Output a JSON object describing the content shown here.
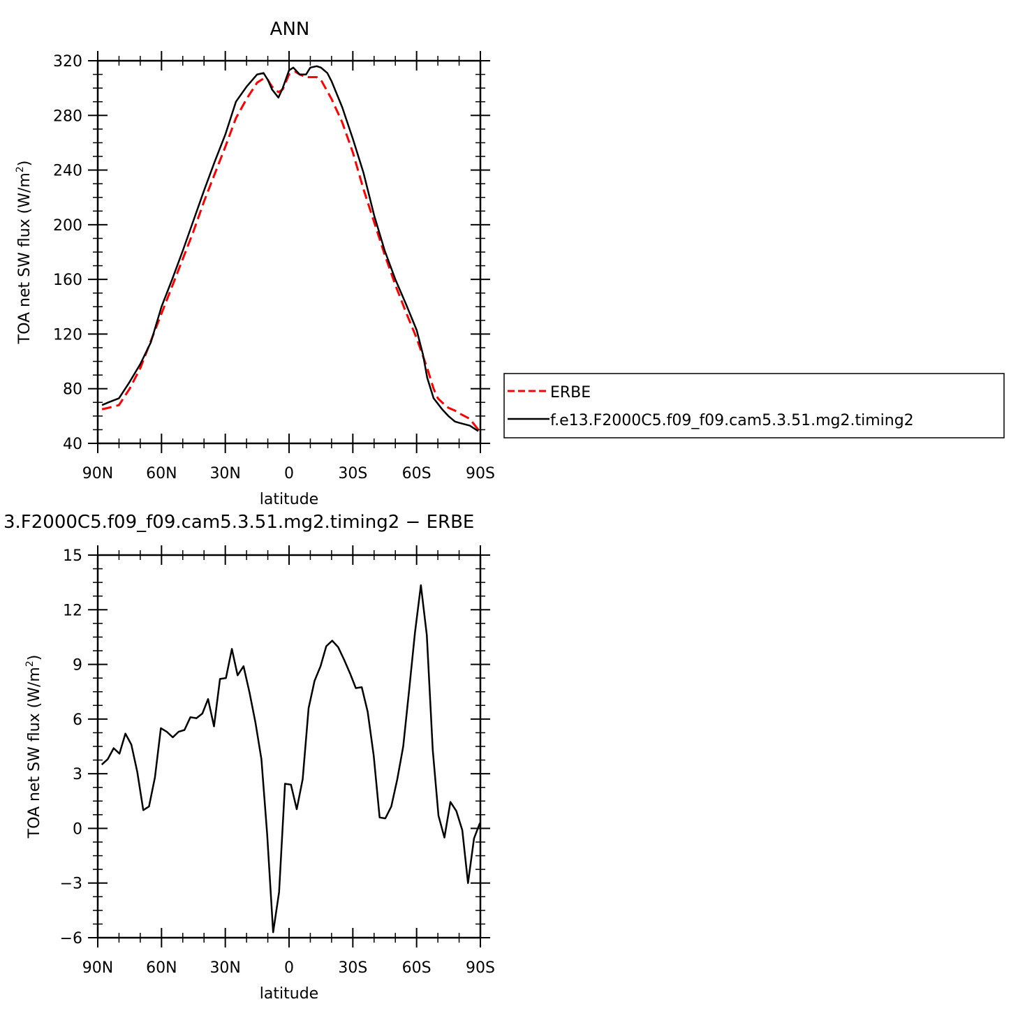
{
  "chart_data": [
    {
      "type": "line",
      "title": "ANN",
      "xlabel": "latitude",
      "ylabel": "TOA net SW flux (W/m",
      "ylabel_sup": "2",
      "ylabel_close": ")",
      "xlim": [
        90,
        -90
      ],
      "ylim": [
        40,
        320
      ],
      "x_ticks": [
        90,
        60,
        30,
        0,
        -30,
        -60,
        -90
      ],
      "x_tick_labels": [
        "90N",
        "60N",
        "30N",
        "0",
        "30S",
        "60S",
        "90S"
      ],
      "y_ticks": [
        40,
        80,
        120,
        160,
        200,
        240,
        280,
        320
      ],
      "y_tick_labels": [
        "40",
        "80",
        "120",
        "160",
        "200",
        "240",
        "280",
        "320"
      ],
      "legend_position": "right",
      "series": [
        {
          "name": "ERBE",
          "color": "#ff0000",
          "dash": "dashed",
          "x": [
            88,
            85,
            80,
            75,
            70,
            65,
            60,
            55,
            50,
            45,
            40,
            35,
            30,
            25,
            20,
            15,
            12,
            10,
            8,
            5,
            3,
            0,
            -3,
            -5,
            -8,
            -10,
            -13,
            -15,
            -20,
            -25,
            -30,
            -35,
            -40,
            -45,
            -50,
            -55,
            -60,
            -65,
            -68,
            -70,
            -72,
            -75,
            -78,
            -80,
            -85,
            -89
          ],
          "y": [
            65,
            66,
            68,
            80,
            95,
            115,
            135,
            155,
            175,
            195,
            217,
            237,
            257,
            278,
            292,
            304,
            307,
            306,
            301,
            297,
            299,
            310,
            312,
            310,
            308,
            308,
            308,
            306,
            292,
            275,
            253,
            226,
            202,
            178,
            156,
            136,
            117,
            95,
            80,
            73,
            70,
            66,
            64,
            62,
            58,
            50
          ]
        },
        {
          "name": "f.e13.F2000C5.f09_f09.cam5.3.51.mg2.timing2",
          "color": "#000000",
          "dash": "solid",
          "x": [
            88,
            85,
            80,
            75,
            70,
            65,
            60,
            55,
            50,
            45,
            40,
            35,
            30,
            25,
            20,
            15,
            12,
            10,
            8,
            5,
            3,
            0,
            -2,
            -5,
            -8,
            -10,
            -13,
            -15,
            -18,
            -20,
            -25,
            -30,
            -35,
            -40,
            -45,
            -50,
            -55,
            -60,
            -63,
            -65,
            -68,
            -70,
            -72,
            -75,
            -78,
            -80,
            -85,
            -89
          ],
          "y": [
            68,
            70,
            73,
            85,
            98,
            114,
            140,
            160,
            181,
            203,
            225,
            246,
            266,
            290,
            301,
            310,
            311,
            306,
            299,
            293,
            300,
            313,
            315,
            310,
            310,
            315,
            316,
            315,
            311,
            305,
            286,
            263,
            238,
            207,
            181,
            160,
            142,
            123,
            105,
            88,
            73,
            69,
            65,
            60,
            56,
            55,
            53,
            49
          ]
        }
      ]
    },
    {
      "type": "line",
      "title": "3.F2000C5.f09_f09.cam5.3.51.mg2.timing2 − ERBE",
      "xlabel": "latitude",
      "ylabel": "TOA net SW flux (W/m",
      "ylabel_sup": "2",
      "ylabel_close": ")",
      "xlim": [
        90,
        -90
      ],
      "ylim": [
        -6,
        15
      ],
      "x_ticks": [
        90,
        60,
        30,
        0,
        -30,
        -60,
        -90
      ],
      "x_tick_labels": [
        "90N",
        "60N",
        "30N",
        "0",
        "30S",
        "60S",
        "90S"
      ],
      "y_ticks": [
        -6,
        -3,
        0,
        3,
        6,
        9,
        12,
        15
      ],
      "y_tick_labels": [
        "−6",
        "−3",
        "0",
        "3",
        "6",
        "9",
        "12",
        "15"
      ],
      "series": [
        {
          "color": "#000000",
          "dash": "solid",
          "x": [
            88.1,
            85.3,
            82.5,
            79.8,
            77.0,
            74.2,
            71.4,
            68.6,
            65.9,
            63.1,
            60.3,
            57.5,
            54.7,
            52.0,
            49.2,
            46.4,
            43.6,
            40.8,
            38.1,
            35.3,
            32.5,
            29.7,
            26.9,
            24.2,
            21.4,
            18.6,
            15.8,
            13.0,
            10.3,
            7.5,
            4.7,
            1.9,
            -0.9,
            -3.6,
            -6.4,
            -9.2,
            -12.0,
            -14.8,
            -17.5,
            -20.3,
            -23.1,
            -25.9,
            -28.7,
            -31.4,
            -34.2,
            -37.0,
            -39.8,
            -42.6,
            -45.3,
            -48.1,
            -50.9,
            -53.7,
            -56.5,
            -59.2,
            -62.0,
            -64.8,
            -67.6,
            -70.3,
            -73.1,
            -75.9,
            -78.7,
            -81.5,
            -84.2,
            -87.0,
            -89.8
          ],
          "y": [
            3.5,
            3.8,
            4.4,
            4.1,
            5.2,
            4.6,
            3.1,
            1.0,
            1.2,
            2.8,
            5.5,
            5.3,
            5.0,
            5.3,
            5.4,
            6.1,
            6.05,
            6.3,
            7.1,
            5.6,
            8.2,
            8.25,
            9.85,
            8.4,
            8.9,
            7.45,
            5.8,
            3.8,
            -0.3,
            -5.7,
            -3.5,
            2.45,
            2.4,
            1.05,
            2.7,
            6.6,
            8.1,
            8.9,
            10.0,
            10.3,
            9.95,
            9.25,
            8.5,
            7.7,
            7.75,
            6.4,
            4.0,
            0.6,
            0.55,
            1.2,
            2.7,
            4.5,
            7.6,
            10.7,
            13.35,
            10.6,
            4.3,
            0.7,
            -0.5,
            1.45,
            0.95,
            -0.1,
            -3.0,
            -0.55,
            0.3
          ]
        }
      ]
    }
  ]
}
